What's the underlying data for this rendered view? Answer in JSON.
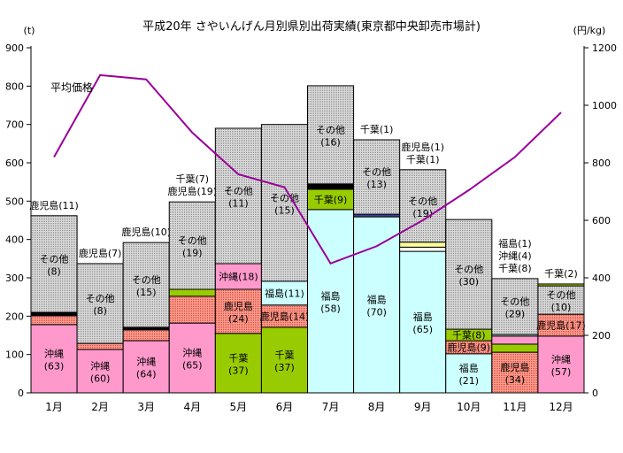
{
  "title": "平成20年 さやいんげん月別県別出荷実績(東京都中央卸売市場計)",
  "chart_data": {
    "type": "bar",
    "subtype": "stacked-bars-with-price-line",
    "title": "平成20年 さやいんげん月別県別出荷実績(東京都中央卸売市場計)",
    "left_axis": {
      "unit": "(t)",
      "min": 0,
      "max": 900,
      "step": 100,
      "ticks": [
        0,
        100,
        200,
        300,
        400,
        500,
        600,
        700,
        800,
        900
      ]
    },
    "right_axis": {
      "unit": "(円/kg)",
      "min": 0,
      "max": 1200,
      "step": 200,
      "ticks": [
        0,
        200,
        400,
        600,
        800,
        1000,
        1200
      ]
    },
    "categories": [
      "1月",
      "2月",
      "3月",
      "4月",
      "5月",
      "6月",
      "7月",
      "8月",
      "9月",
      "10月",
      "11月",
      "12月"
    ],
    "colors": {
      "沖縄": "#FF99CC",
      "鹿児島": "pat-salmon",
      "千葉": "#99CC00",
      "福島": "#CCFFFF",
      "その他": "pat-grey",
      "black": "#000000",
      "navy": "#3D3D99",
      "yellow": "#FFFF99",
      "white": "#FFFFFF"
    },
    "bars": [
      {
        "month": "1月",
        "labels_above": [
          "鹿児島(11)"
        ],
        "segments": [
          {
            "name": "沖縄",
            "value": 178,
            "label": [
              "沖縄",
              "(63)"
            ]
          },
          {
            "name": "鹿児島",
            "value": 23
          },
          {
            "name": "black",
            "value": 9,
            "tick_label": "1"
          },
          {
            "name": "その他",
            "value": 252,
            "label": [
              "その他",
              "(8)"
            ]
          }
        ]
      },
      {
        "month": "2月",
        "labels_above": [
          "鹿児島(7)"
        ],
        "segments": [
          {
            "name": "沖縄",
            "value": 113,
            "label": [
              "沖縄",
              "(60)"
            ]
          },
          {
            "name": "鹿児島",
            "value": 16,
            "tick_label": "0"
          },
          {
            "name": "その他",
            "value": 208,
            "label": [
              "その他",
              "(8)"
            ]
          }
        ]
      },
      {
        "month": "3月",
        "labels_above": [
          "鹿児島(10)"
        ],
        "segments": [
          {
            "name": "沖縄",
            "value": 136,
            "label": [
              "沖縄",
              "(64)"
            ]
          },
          {
            "name": "鹿児島",
            "value": 28
          },
          {
            "name": "black",
            "value": 7,
            "tick_label": "1"
          },
          {
            "name": "その他",
            "value": 221,
            "label": [
              "その他",
              "(15)"
            ]
          }
        ]
      },
      {
        "month": "4月",
        "labels_above": [
          "千葉(7)",
          "鹿児島(19)"
        ],
        "segments": [
          {
            "name": "沖縄",
            "value": 182,
            "label": [
              "沖縄",
              "(65)"
            ]
          },
          {
            "name": "鹿児島",
            "value": 70
          },
          {
            "name": "千葉",
            "value": 18
          },
          {
            "name": "その他",
            "value": 228,
            "label": [
              "その他",
              "(19)"
            ]
          }
        ]
      },
      {
        "month": "5月",
        "labels_above": [],
        "segments": [
          {
            "name": "千葉",
            "value": 155,
            "label": [
              "千葉",
              "(37)"
            ]
          },
          {
            "name": "鹿児島",
            "value": 115,
            "label": [
              "鹿児島",
              "(24)"
            ]
          },
          {
            "name": "沖縄",
            "value": 67,
            "label": [
              "沖縄(18)"
            ]
          },
          {
            "name": "その他",
            "value": 353,
            "label": [
              "その他",
              "(11)"
            ]
          }
        ]
      },
      {
        "month": "6月",
        "labels_above": [],
        "segments": [
          {
            "name": "千葉",
            "value": 171,
            "label": [
              "千葉",
              "(37)"
            ]
          },
          {
            "name": "鹿児島",
            "value": 58,
            "label": [
              "鹿児島(14)"
            ]
          },
          {
            "name": "福島",
            "value": 62,
            "label": [
              "福島(11)"
            ]
          },
          {
            "name": "その他",
            "value": 409,
            "label": [
              "その他",
              "(15)"
            ]
          }
        ]
      },
      {
        "month": "7月",
        "labels_above": [],
        "segments": [
          {
            "name": "福島",
            "value": 478,
            "label": [
              "福島",
              "(58)"
            ]
          },
          {
            "name": "千葉",
            "value": 53,
            "label": [
              "千葉(9)"
            ]
          },
          {
            "name": "black",
            "value": 14
          },
          {
            "name": "その他",
            "value": 256,
            "label": [
              "その他",
              "(16)"
            ]
          }
        ]
      },
      {
        "month": "8月",
        "labels_above": [
          "千葉(1)"
        ],
        "segments": [
          {
            "name": "福島",
            "value": 459,
            "label": [
              "福島",
              "(70)"
            ]
          },
          {
            "name": "navy",
            "value": 7
          },
          {
            "name": "その他",
            "value": 194,
            "label": [
              "その他",
              "(13)"
            ]
          }
        ]
      },
      {
        "month": "9月",
        "labels_above": [
          "鹿児島(1)",
          "千葉(1)"
        ],
        "segments": [
          {
            "name": "福島",
            "value": 369,
            "label": [
              "福島",
              "(65)"
            ]
          },
          {
            "name": "white",
            "value": 11
          },
          {
            "name": "yellow",
            "value": 13
          },
          {
            "name": "その他",
            "value": 189,
            "label": [
              "その他",
              "(19)"
            ]
          }
        ]
      },
      {
        "month": "10月",
        "labels_above": [],
        "segments": [
          {
            "name": "福島",
            "value": 102,
            "label": [
              "福島",
              "(21)"
            ]
          },
          {
            "name": "鹿児島",
            "value": 34,
            "label": [
              "鹿児島(9)"
            ]
          },
          {
            "name": "千葉",
            "value": 30,
            "label": [
              "千葉(8)"
            ]
          },
          {
            "name": "その他",
            "value": 286,
            "label": [
              "その他",
              "(30)"
            ]
          }
        ]
      },
      {
        "month": "11月",
        "labels_above": [
          "福島(1)",
          "沖縄(4)",
          "千葉(8)"
        ],
        "segments": [
          {
            "name": "鹿児島",
            "value": 106,
            "label": [
              "鹿児島",
              "(34)"
            ]
          },
          {
            "name": "千葉",
            "value": 21
          },
          {
            "name": "沖縄",
            "value": 21
          },
          {
            "name": "福島",
            "value": 4
          },
          {
            "name": "その他",
            "value": 146,
            "label": [
              "その他",
              "(29)"
            ]
          }
        ]
      },
      {
        "month": "12月",
        "labels_above": [
          "千葉(2)"
        ],
        "segments": [
          {
            "name": "沖縄",
            "value": 148,
            "label": [
              "沖縄",
              "(57)"
            ]
          },
          {
            "name": "鹿児島",
            "value": 57,
            "label": [
              "鹿児島(17)"
            ]
          },
          {
            "name": "その他",
            "value": 74,
            "label": [
              "その他",
              "(10)"
            ]
          },
          {
            "name": "千葉",
            "value": 5
          }
        ]
      }
    ],
    "price": {
      "label": "平均価格",
      "color": "#990099",
      "unit": "円/kg",
      "values": [
        820,
        1105,
        1090,
        905,
        760,
        715,
        450,
        510,
        600,
        705,
        820,
        975
      ]
    },
    "layout": {
      "grid": false,
      "bars_touch": true,
      "price_label_pos": [
        57,
        103
      ]
    }
  }
}
